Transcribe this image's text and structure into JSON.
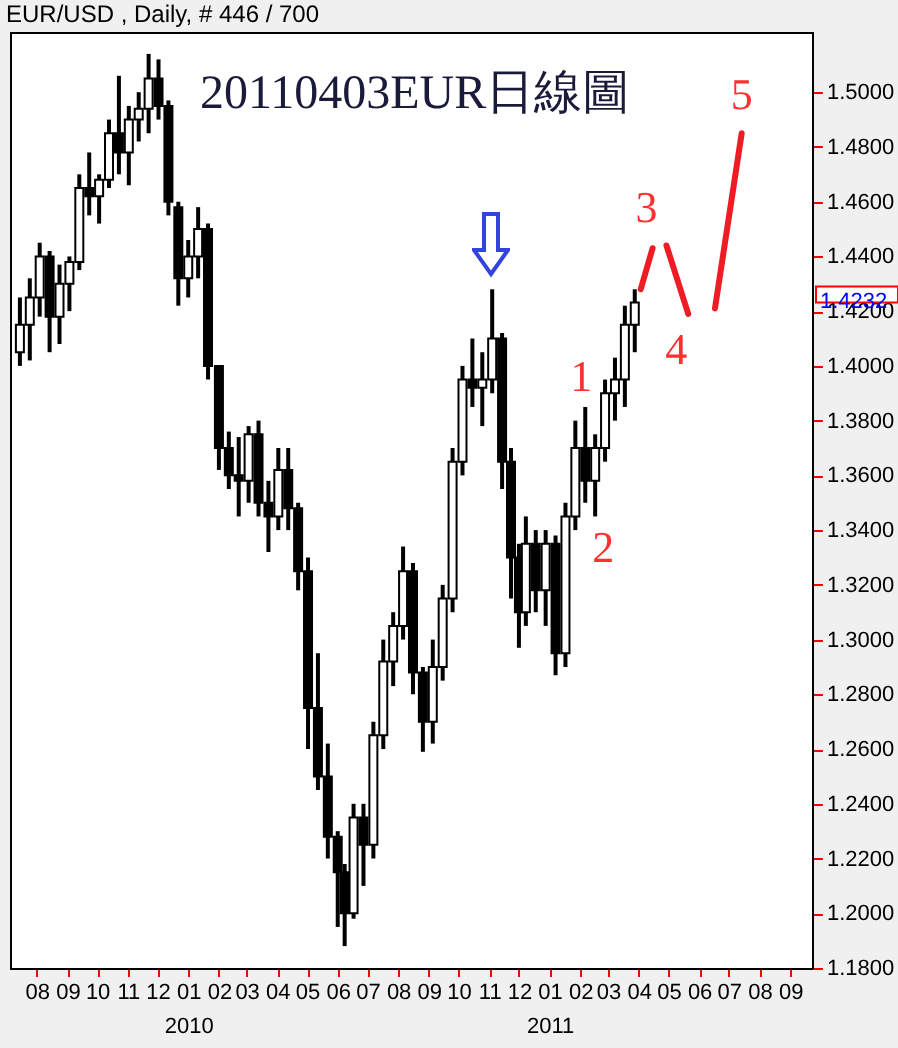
{
  "chart_data": {
    "type": "candlestick",
    "title": "20110403EUR日線圖",
    "subtitle": "EUR/USD , Daily, # 446 / 700",
    "x": [
      "2009-07-15",
      "2009-07-25",
      "2009-08-04",
      "2009-08-14",
      "2009-08-24",
      "2009-09-03",
      "2009-09-13",
      "2009-09-23",
      "2009-10-03",
      "2009-10-13",
      "2009-10-23",
      "2009-11-02",
      "2009-11-12",
      "2009-11-22",
      "2009-12-02",
      "2009-12-12",
      "2009-12-22",
      "2010-01-01",
      "2010-01-11",
      "2010-01-21",
      "2010-02-01",
      "2010-02-11",
      "2010-02-21",
      "2010-03-03",
      "2010-03-13",
      "2010-03-23",
      "2010-04-02",
      "2010-04-12",
      "2010-04-22",
      "2010-05-02",
      "2010-05-12",
      "2010-05-22",
      "2010-06-01",
      "2010-06-08",
      "2010-06-17",
      "2010-06-27",
      "2010-07-07",
      "2010-07-17",
      "2010-07-27",
      "2010-08-06",
      "2010-08-16",
      "2010-08-26",
      "2010-09-05",
      "2010-09-15",
      "2010-09-25",
      "2010-10-05",
      "2010-10-15",
      "2010-10-25",
      "2010-11-04",
      "2010-11-14",
      "2010-11-23",
      "2010-12-01",
      "2010-12-08",
      "2010-12-18",
      "2010-12-28",
      "2011-01-07",
      "2011-01-17",
      "2011-01-27",
      "2011-02-06",
      "2011-02-16",
      "2011-02-26",
      "2011-03-08",
      "2011-03-18",
      "2011-03-28"
    ],
    "ohlc": [
      [
        1.405,
        1.425,
        1.4,
        1.415
      ],
      [
        1.415,
        1.432,
        1.402,
        1.425
      ],
      [
        1.425,
        1.445,
        1.418,
        1.44
      ],
      [
        1.44,
        1.442,
        1.405,
        1.418
      ],
      [
        1.418,
        1.437,
        1.408,
        1.43
      ],
      [
        1.43,
        1.44,
        1.42,
        1.438
      ],
      [
        1.438,
        1.47,
        1.435,
        1.465
      ],
      [
        1.465,
        1.478,
        1.455,
        1.462
      ],
      [
        1.462,
        1.47,
        1.452,
        1.468
      ],
      [
        1.468,
        1.49,
        1.465,
        1.485
      ],
      [
        1.485,
        1.506,
        1.47,
        1.478
      ],
      [
        1.478,
        1.495,
        1.466,
        1.49
      ],
      [
        1.49,
        1.5,
        1.482,
        1.494
      ],
      [
        1.494,
        1.514,
        1.485,
        1.505
      ],
      [
        1.505,
        1.512,
        1.49,
        1.495
      ],
      [
        1.495,
        1.497,
        1.455,
        1.46
      ],
      [
        1.458,
        1.46,
        1.422,
        1.432
      ],
      [
        1.432,
        1.446,
        1.425,
        1.44
      ],
      [
        1.44,
        1.458,
        1.432,
        1.45
      ],
      [
        1.45,
        1.452,
        1.395,
        1.4
      ],
      [
        1.4,
        1.4,
        1.362,
        1.37
      ],
      [
        1.37,
        1.376,
        1.355,
        1.36
      ],
      [
        1.36,
        1.374,
        1.345,
        1.358
      ],
      [
        1.358,
        1.378,
        1.35,
        1.375
      ],
      [
        1.375,
        1.38,
        1.345,
        1.35
      ],
      [
        1.35,
        1.358,
        1.332,
        1.345
      ],
      [
        1.345,
        1.37,
        1.34,
        1.362
      ],
      [
        1.362,
        1.37,
        1.34,
        1.348
      ],
      [
        1.348,
        1.35,
        1.318,
        1.325
      ],
      [
        1.325,
        1.33,
        1.26,
        1.275
      ],
      [
        1.275,
        1.295,
        1.245,
        1.25
      ],
      [
        1.25,
        1.262,
        1.22,
        1.228
      ],
      [
        1.228,
        1.23,
        1.195,
        1.215
      ],
      [
        1.215,
        1.218,
        1.188,
        1.2
      ],
      [
        1.2,
        1.24,
        1.198,
        1.235
      ],
      [
        1.235,
        1.24,
        1.21,
        1.225
      ],
      [
        1.225,
        1.27,
        1.22,
        1.265
      ],
      [
        1.265,
        1.3,
        1.26,
        1.292
      ],
      [
        1.292,
        1.31,
        1.283,
        1.305
      ],
      [
        1.305,
        1.334,
        1.3,
        1.325
      ],
      [
        1.325,
        1.328,
        1.28,
        1.288
      ],
      [
        1.288,
        1.29,
        1.259,
        1.27
      ],
      [
        1.27,
        1.3,
        1.262,
        1.29
      ],
      [
        1.29,
        1.32,
        1.285,
        1.315
      ],
      [
        1.315,
        1.37,
        1.31,
        1.365
      ],
      [
        1.365,
        1.4,
        1.36,
        1.395
      ],
      [
        1.395,
        1.41,
        1.385,
        1.392
      ],
      [
        1.392,
        1.405,
        1.378,
        1.395
      ],
      [
        1.395,
        1.428,
        1.39,
        1.41
      ],
      [
        1.41,
        1.412,
        1.355,
        1.365
      ],
      [
        1.365,
        1.37,
        1.315,
        1.33
      ],
      [
        1.33,
        1.335,
        1.297,
        1.31
      ],
      [
        1.31,
        1.345,
        1.305,
        1.335
      ],
      [
        1.335,
        1.34,
        1.31,
        1.318
      ],
      [
        1.318,
        1.34,
        1.305,
        1.335
      ],
      [
        1.335,
        1.338,
        1.287,
        1.295
      ],
      [
        1.295,
        1.35,
        1.29,
        1.345
      ],
      [
        1.345,
        1.38,
        1.34,
        1.37
      ],
      [
        1.37,
        1.385,
        1.35,
        1.358
      ],
      [
        1.358,
        1.375,
        1.345,
        1.37
      ],
      [
        1.37,
        1.395,
        1.365,
        1.39
      ],
      [
        1.39,
        1.403,
        1.38,
        1.395
      ],
      [
        1.395,
        1.422,
        1.385,
        1.415
      ],
      [
        1.415,
        1.428,
        1.405,
        1.4232
      ]
    ],
    "series": [
      {
        "type": "line",
        "color": "#ee1c24",
        "x": [
          "2011-04-03",
          "2011-04-15",
          "2011-04-22",
          "2011-04-29",
          "2011-05-21",
          "2011-06-03",
          "2011-06-17",
          "2011-07-14"
        ],
        "values": [
          1.428,
          1.443,
          null,
          1.444,
          1.419,
          null,
          1.421,
          1.485
        ]
      }
    ],
    "xlim": [
      "2009-07-05",
      "2011-09-23"
    ],
    "xticks": [
      {
        "value": "2009-08-01",
        "label": "08"
      },
      {
        "value": "2009-09-01",
        "label": "09"
      },
      {
        "value": "2009-10-01",
        "label": "10"
      },
      {
        "value": "2009-11-01",
        "label": "11"
      },
      {
        "value": "2009-12-01",
        "label": "12"
      },
      {
        "value": "2010-01-01",
        "label": "01\n2010"
      },
      {
        "value": "2010-02-01",
        "label": "02"
      },
      {
        "value": "2010-03-01",
        "label": "03"
      },
      {
        "value": "2010-04-01",
        "label": "04"
      },
      {
        "value": "2010-05-01",
        "label": "05"
      },
      {
        "value": "2010-06-01",
        "label": "06"
      },
      {
        "value": "2010-07-01",
        "label": "07"
      },
      {
        "value": "2010-08-01",
        "label": "08"
      },
      {
        "value": "2010-09-01",
        "label": "09"
      },
      {
        "value": "2010-10-01",
        "label": "10"
      },
      {
        "value": "2010-11-01",
        "label": "11"
      },
      {
        "value": "2010-12-01",
        "label": "12"
      },
      {
        "value": "2011-01-01",
        "label": "01\n2011"
      },
      {
        "value": "2011-02-01",
        "label": "02"
      },
      {
        "value": "2011-03-01",
        "label": "03"
      },
      {
        "value": "2011-04-01",
        "label": "04"
      },
      {
        "value": "2011-05-01",
        "label": "05"
      },
      {
        "value": "2011-06-01",
        "label": "06"
      },
      {
        "value": "2011-07-01",
        "label": "07"
      },
      {
        "value": "2011-08-01",
        "label": "08"
      },
      {
        "value": "2011-09-01",
        "label": "09"
      }
    ],
    "ylim": [
      1.18,
      1.522
    ],
    "yticks": [
      {
        "value": 1.18,
        "label": "1.1800"
      },
      {
        "value": 1.2,
        "label": "1.2000"
      },
      {
        "value": 1.22,
        "label": "1.2200"
      },
      {
        "value": 1.24,
        "label": "1.2400"
      },
      {
        "value": 1.26,
        "label": "1.2600"
      },
      {
        "value": 1.28,
        "label": "1.2800"
      },
      {
        "value": 1.3,
        "label": "1.3000"
      },
      {
        "value": 1.32,
        "label": "1.3200"
      },
      {
        "value": 1.34,
        "label": "1.3400"
      },
      {
        "value": 1.36,
        "label": "1.3600"
      },
      {
        "value": 1.38,
        "label": "1.3800"
      },
      {
        "value": 1.4,
        "label": "1.4000"
      },
      {
        "value": 1.42,
        "label": "1.4200"
      },
      {
        "value": 1.44,
        "label": "1.4400"
      },
      {
        "value": 1.46,
        "label": "1.4600"
      },
      {
        "value": 1.48,
        "label": "1.4800"
      },
      {
        "value": 1.5,
        "label": "1.5000"
      }
    ],
    "annotations": [
      {
        "text": "1",
        "x": "2011-02-06",
        "y": 1.385
      },
      {
        "text": "2",
        "x": "2011-02-16",
        "y": 1.345
      },
      {
        "text": "3",
        "x": "2011-04-15",
        "y": 1.443
      },
      {
        "text": "4",
        "x": "2011-05-21",
        "y": 1.419
      },
      {
        "text": "5",
        "x": "2011-07-14",
        "y": 1.485
      },
      "1.4232"
    ]
  }
}
